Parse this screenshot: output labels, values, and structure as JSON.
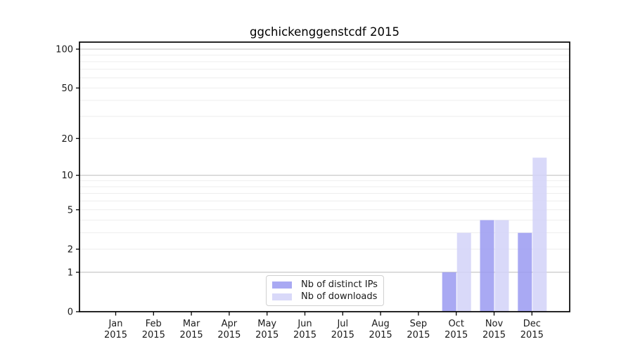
{
  "figure": {
    "background": "#ffffff"
  },
  "chart_data": {
    "type": "bar",
    "title": "ggchickenggenstcdf 2015",
    "categories": [
      "Jan 2015",
      "Feb 2015",
      "Mar 2015",
      "Apr 2015",
      "May 2015",
      "Jun 2015",
      "Jul 2015",
      "Aug 2015",
      "Sep 2015",
      "Oct 2015",
      "Nov 2015",
      "Dec 2015"
    ],
    "series": [
      {
        "name": "Nb of distinct IPs",
        "color": "#a9a9f3",
        "values": [
          0,
          0,
          0,
          0,
          0,
          0,
          0,
          0,
          0,
          1,
          4,
          3
        ]
      },
      {
        "name": "Nb of downloads",
        "color": "#d9d9f9",
        "values": [
          0,
          0,
          0,
          0,
          0,
          0,
          0,
          0,
          0,
          3,
          4,
          14
        ]
      }
    ],
    "y_axis": {
      "scale": "log1p",
      "tick_labels": [
        0,
        1,
        2,
        5,
        10,
        20,
        50,
        100
      ],
      "major_gridlines": [
        1,
        10,
        100
      ],
      "minor_gridlines": [
        2,
        3,
        4,
        5,
        6,
        7,
        8,
        9,
        20,
        30,
        40,
        50,
        60,
        70,
        80,
        90
      ],
      "ylim": [
        0,
        110
      ]
    },
    "x_axis": {
      "tick_count": 12
    },
    "legend": {
      "position": "lower-center-inside",
      "items": [
        "Nb of distinct IPs",
        "Nb of downloads"
      ]
    },
    "grid": "horizontal"
  },
  "colors": {
    "major_gridline": "#c2c2c2",
    "minor_gridline": "#eeeeee",
    "axis_frame": "#000000",
    "tick_text": "#1a1a1a",
    "legend_border": "#d0d0d0"
  }
}
